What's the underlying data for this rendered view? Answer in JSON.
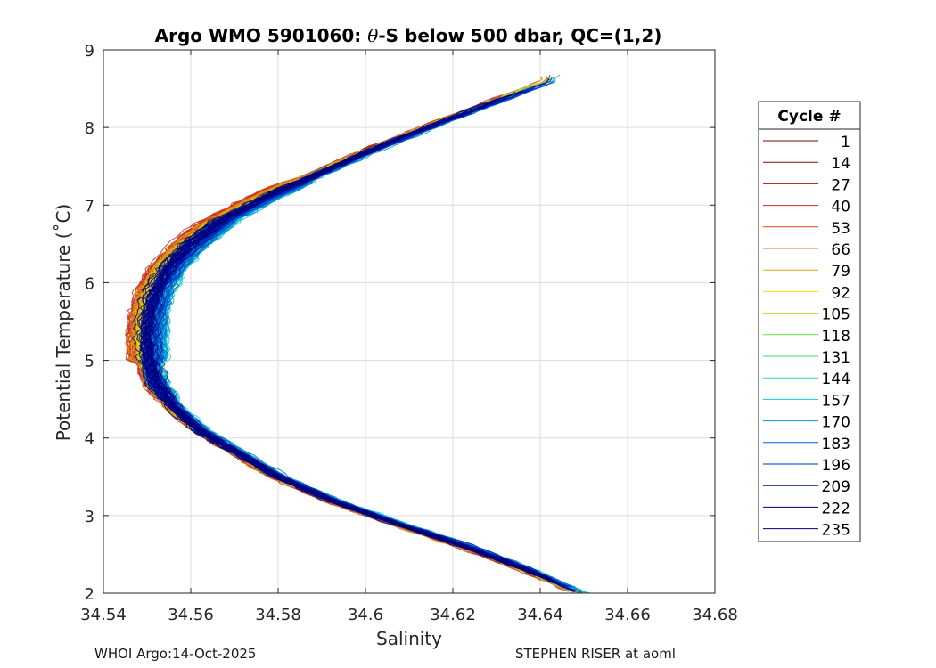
{
  "chart_data": {
    "type": "line",
    "title_prefix": "Argo WMO 5901060: ",
    "title_theta": "θ",
    "title_suffix": "-S below 500 dbar,  QC=(1,2)",
    "xlabel": "Salinity",
    "ylabel": "Potential Temperature (˚C)",
    "xlim": [
      34.54,
      34.68
    ],
    "ylim": [
      2,
      9
    ],
    "xticks": [
      "34.54",
      "34.56",
      "34.58",
      "34.6",
      "34.62",
      "34.64",
      "34.66",
      "34.68"
    ],
    "yticks": [
      "2",
      "3",
      "4",
      "5",
      "6",
      "7",
      "8",
      "9"
    ],
    "grid": true,
    "legend_title": "Cycle #",
    "legend_position": "right",
    "legend": [
      {
        "label": "1",
        "color": "#800000"
      },
      {
        "label": "14",
        "color": "#9a0000"
      },
      {
        "label": "27",
        "color": "#b30f0f"
      },
      {
        "label": "40",
        "color": "#c82a14"
      },
      {
        "label": "53",
        "color": "#d04a1a"
      },
      {
        "label": "66",
        "color": "#d9761a"
      },
      {
        "label": "79",
        "color": "#e0a010"
      },
      {
        "label": "92",
        "color": "#f0e000"
      },
      {
        "label": "105",
        "color": "#a8e020"
      },
      {
        "label": "118",
        "color": "#60e040"
      },
      {
        "label": "131",
        "color": "#30e080"
      },
      {
        "label": "144",
        "color": "#20d8b0"
      },
      {
        "label": "157",
        "color": "#10c8e0"
      },
      {
        "label": "170",
        "color": "#0098d0"
      },
      {
        "label": "183",
        "color": "#0060d0"
      },
      {
        "label": "196",
        "color": "#0030c0"
      },
      {
        "label": "209",
        "color": "#0010a0"
      },
      {
        "label": "222",
        "color": "#000090"
      },
      {
        "label": "235",
        "color": "#000070"
      }
    ],
    "reference_profile": {
      "temperature": [
        2.0,
        2.3,
        2.6,
        2.9,
        3.2,
        3.5,
        3.8,
        4.1,
        4.4,
        4.7,
        5.0,
        5.3,
        5.6,
        5.9,
        6.2,
        6.5,
        6.8,
        7.1,
        7.4,
        7.7,
        8.0,
        8.3,
        8.6
      ],
      "salinity": [
        34.649,
        34.637,
        34.623,
        34.607,
        34.592,
        34.58,
        34.571,
        34.562,
        34.556,
        34.552,
        34.5505,
        34.55,
        34.5505,
        34.552,
        34.555,
        34.56,
        34.567,
        34.577,
        34.589,
        34.601,
        34.614,
        34.628,
        34.642
      ]
    }
  },
  "footer": {
    "left": "WHOI Argo:14-Oct-2025",
    "right": "STEPHEN RISER at aoml"
  }
}
